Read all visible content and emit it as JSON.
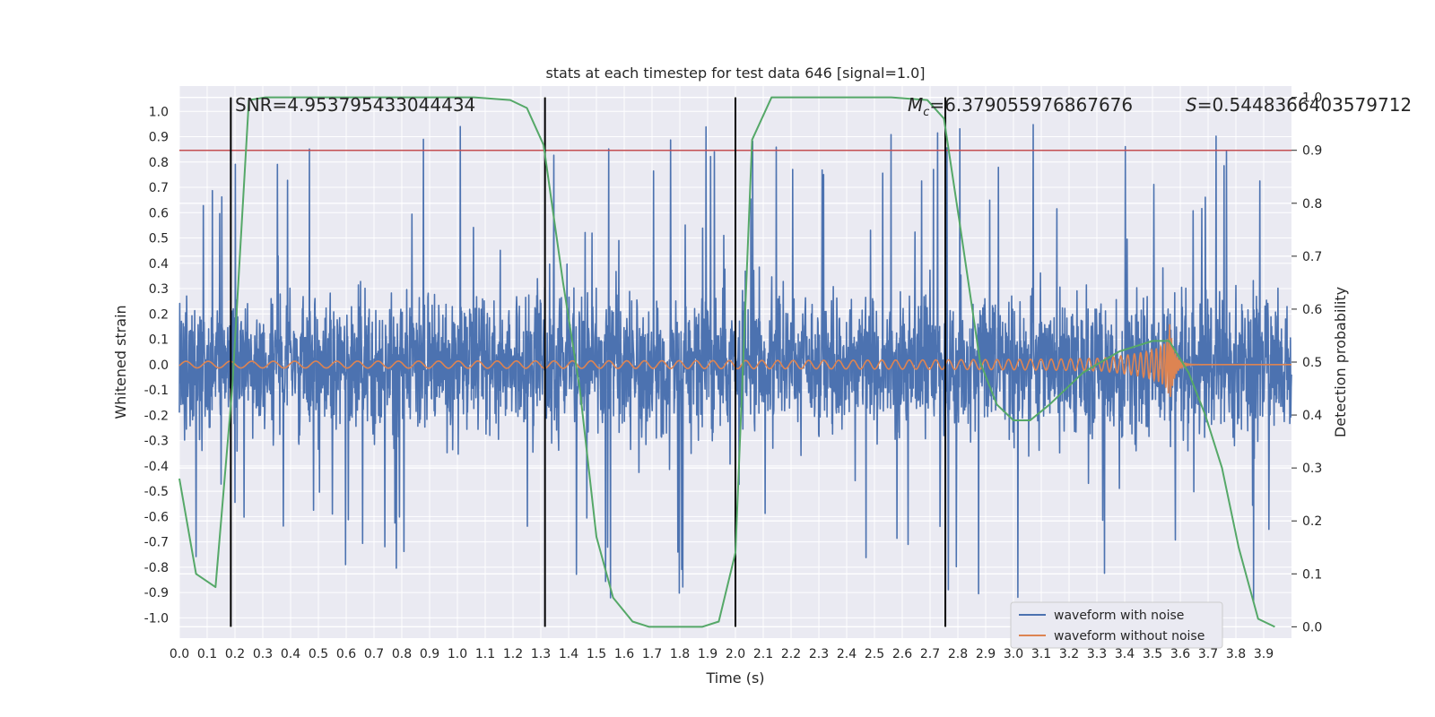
{
  "chart_data": {
    "type": "line",
    "title": "stats at each timestep for test data 646 [signal=1.0]",
    "xlabel": "Time (s)",
    "ylabel": "Whitened strain",
    "y2label": "Detection probability",
    "xlim": [
      0.0,
      4.0
    ],
    "ylim": [
      -1.08,
      1.1
    ],
    "y2lim": [
      -0.0214,
      1.0214
    ],
    "x_ticks": [
      "0.0",
      "0.1",
      "0.2",
      "0.3",
      "0.4",
      "0.5",
      "0.6",
      "0.7",
      "0.8",
      "0.9",
      "1.0",
      "1.1",
      "1.2",
      "1.3",
      "1.4",
      "1.5",
      "1.6",
      "1.7",
      "1.8",
      "1.9",
      "2.0",
      "2.1",
      "2.2",
      "2.3",
      "2.4",
      "2.5",
      "2.6",
      "2.7",
      "2.8",
      "2.9",
      "3.0",
      "3.1",
      "3.2",
      "3.3",
      "3.4",
      "3.5",
      "3.6",
      "3.7",
      "3.8",
      "3.9"
    ],
    "y_ticks": [
      "1.0",
      "0.9",
      "0.8",
      "0.7",
      "0.6",
      "0.5",
      "0.4",
      "0.3",
      "0.2",
      "0.1",
      "0.0",
      "-0.1",
      "-0.2",
      "-0.3",
      "-0.4",
      "-0.5",
      "-0.6",
      "-0.7",
      "-0.8",
      "-0.9",
      "-1.0"
    ],
    "y2_ticks": [
      "1.0",
      "0.9",
      "0.8",
      "0.7",
      "0.6",
      "0.5",
      "0.4",
      "0.3",
      "0.2",
      "0.1",
      "0.0"
    ],
    "annotations": {
      "snr": "SNR=4.953795433044434",
      "mc_symbol": "M",
      "mc_sub": "c",
      "mc_value": "=6.379055976867676",
      "s_symbol": "S",
      "s_value": "=0.5448366403579712"
    },
    "threshold": 0.9,
    "vlines": [
      0.185,
      1.315,
      2.0,
      2.755
    ],
    "series": [
      {
        "name": "waveform with noise",
        "color": "#4c72b0",
        "kind": "noise",
        "x_range": [
          0.0,
          4.0
        ],
        "amplitude_max": 1.0,
        "amplitude_min": -0.96
      },
      {
        "name": "waveform without noise",
        "color": "#dd8452",
        "kind": "chirp",
        "x_range": [
          0.0,
          4.0
        ],
        "merger_time": 3.56,
        "peak_value": 0.18
      },
      {
        "name": "detection probability",
        "color": "#55a868",
        "axis": "right",
        "x": [
          0.0,
          0.06,
          0.13,
          0.19,
          0.25,
          0.31,
          0.44,
          0.56,
          0.69,
          0.81,
          0.94,
          1.06,
          1.19,
          1.25,
          1.31,
          1.38,
          1.44,
          1.5,
          1.56,
          1.63,
          1.69,
          1.75,
          1.81,
          1.88,
          1.94,
          2.0,
          2.06,
          2.13,
          2.19,
          2.31,
          2.44,
          2.56,
          2.69,
          2.75,
          2.81,
          2.88,
          2.94,
          3.0,
          3.06,
          3.13,
          3.25,
          3.38,
          3.5,
          3.56,
          3.63,
          3.69,
          3.75,
          3.81,
          3.88,
          3.94
        ],
        "y": [
          0.28,
          0.1,
          0.075,
          0.45,
          0.995,
          1.0,
          1.0,
          1.0,
          1.0,
          1.0,
          1.0,
          1.0,
          0.995,
          0.98,
          0.91,
          0.65,
          0.45,
          0.17,
          0.055,
          0.01,
          0.0,
          0.0,
          0.0,
          0.0,
          0.01,
          0.14,
          0.92,
          1.0,
          1.0,
          1.0,
          1.0,
          1.0,
          0.995,
          0.96,
          0.75,
          0.5,
          0.42,
          0.39,
          0.39,
          0.42,
          0.48,
          0.52,
          0.54,
          0.54,
          0.48,
          0.4,
          0.3,
          0.15,
          0.015,
          0.0
        ]
      }
    ],
    "legend": {
      "placement": "bottom-right",
      "entries": [
        {
          "label": "waveform with noise",
          "color": "#4c72b0"
        },
        {
          "label": "waveform without noise",
          "color": "#dd8452"
        }
      ]
    },
    "style": {
      "plot_bg": "#eaeaf2",
      "grid": "#ffffff",
      "threshold_color": "#c44e52",
      "vline_color": "#000000"
    }
  }
}
